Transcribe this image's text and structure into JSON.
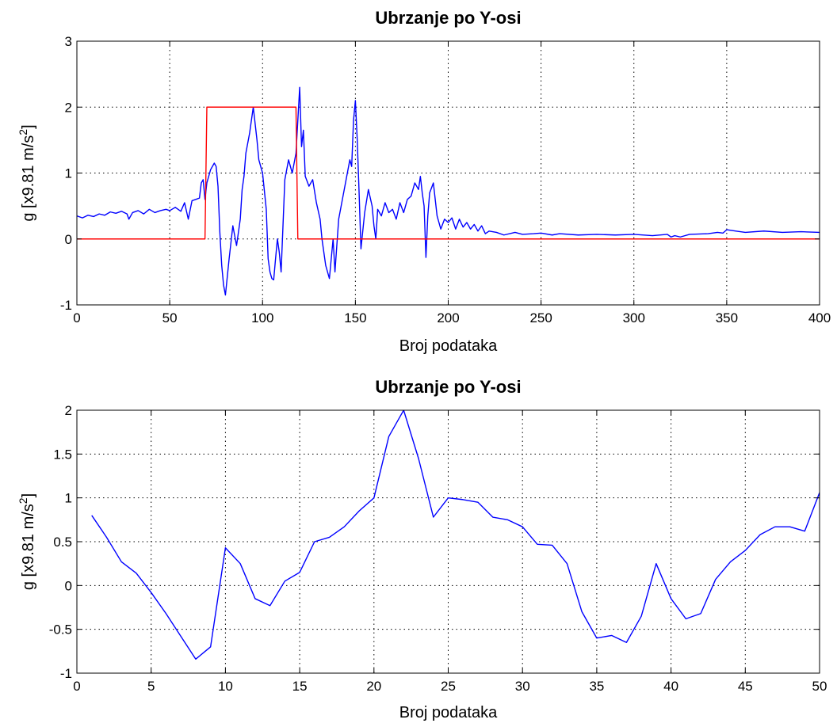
{
  "chart_data": [
    {
      "type": "line",
      "title": "Ubrzanje po Y-osi",
      "xlabel": "Broj podataka",
      "ylabel": "g [x9.81 m/s²]",
      "ylabel_main": "g [x9.81 m/s",
      "ylabel_sup": "2",
      "ylabel_tail": "]",
      "xlim": [
        0,
        400
      ],
      "ylim": [
        -1,
        3
      ],
      "xticks": [
        0,
        50,
        100,
        150,
        200,
        250,
        300,
        350,
        400
      ],
      "xtick_labels": [
        "0",
        "50",
        "100",
        "150",
        "200",
        "250",
        "300",
        "350",
        "400"
      ],
      "yticks": [
        -1,
        0,
        1,
        2,
        3
      ],
      "ytick_labels": [
        "-1",
        "0",
        "1",
        "2",
        "3"
      ],
      "grid": true,
      "series": [
        {
          "color": "#0000ff",
          "x": [
            0,
            3,
            6,
            9,
            12,
            15,
            18,
            21,
            24,
            27,
            28,
            30,
            33,
            36,
            39,
            42,
            45,
            48,
            50,
            53,
            56,
            58,
            60,
            62,
            64,
            66,
            67,
            68,
            69,
            70,
            72,
            74,
            75,
            76,
            77,
            78,
            79,
            80,
            82,
            84,
            86,
            88,
            89,
            90,
            91,
            93,
            95,
            97,
            98,
            100,
            102,
            103,
            104,
            105,
            106,
            107,
            108,
            109,
            110,
            112,
            114,
            116,
            118,
            119,
            120,
            121,
            122,
            123,
            125,
            127,
            129,
            131,
            132,
            133,
            134,
            136,
            137,
            138,
            139,
            141,
            143,
            145,
            147,
            148,
            149,
            150,
            151,
            152,
            153,
            155,
            157,
            159,
            160,
            161,
            162,
            164,
            166,
            168,
            170,
            172,
            174,
            176,
            178,
            180,
            182,
            184,
            185,
            186,
            187,
            188,
            189,
            190,
            192,
            194,
            196,
            198,
            200,
            202,
            204,
            206,
            208,
            210,
            212,
            214,
            216,
            218,
            220,
            222,
            226,
            230,
            236,
            240,
            246,
            250,
            256,
            260,
            270,
            280,
            290,
            300,
            310,
            318,
            320,
            322,
            325,
            330,
            340,
            345,
            348,
            350,
            355,
            360,
            370,
            380,
            390,
            400
          ],
          "y": [
            0.35,
            0.32,
            0.36,
            0.34,
            0.38,
            0.36,
            0.41,
            0.39,
            0.42,
            0.38,
            0.3,
            0.4,
            0.43,
            0.38,
            0.45,
            0.4,
            0.43,
            0.45,
            0.43,
            0.48,
            0.42,
            0.55,
            0.3,
            0.58,
            0.6,
            0.62,
            0.85,
            0.9,
            0.6,
            0.85,
            1.05,
            1.15,
            1.1,
            0.8,
            0.1,
            -0.4,
            -0.7,
            -0.85,
            -0.3,
            0.2,
            -0.1,
            0.3,
            0.75,
            0.95,
            1.3,
            1.6,
            2.0,
            1.5,
            1.2,
            1.0,
            0.45,
            -0.3,
            -0.5,
            -0.6,
            -0.62,
            -0.3,
            0.0,
            -0.2,
            -0.5,
            0.9,
            1.2,
            1.0,
            1.3,
            1.8,
            2.3,
            1.4,
            1.65,
            0.95,
            0.8,
            0.9,
            0.55,
            0.3,
            0.0,
            -0.2,
            -0.4,
            -0.6,
            -0.3,
            0.0,
            -0.5,
            0.3,
            0.6,
            0.9,
            1.2,
            1.1,
            1.8,
            2.1,
            1.5,
            0.7,
            -0.15,
            0.4,
            0.75,
            0.5,
            0.2,
            0.0,
            0.45,
            0.35,
            0.55,
            0.4,
            0.45,
            0.3,
            0.55,
            0.4,
            0.6,
            0.65,
            0.85,
            0.75,
            0.95,
            0.7,
            0.5,
            -0.28,
            0.35,
            0.7,
            0.85,
            0.35,
            0.15,
            0.3,
            0.25,
            0.32,
            0.15,
            0.3,
            0.18,
            0.25,
            0.15,
            0.22,
            0.12,
            0.2,
            0.08,
            0.12,
            0.1,
            0.06,
            0.1,
            0.07,
            0.08,
            0.09,
            0.06,
            0.08,
            0.06,
            0.07,
            0.06,
            0.07,
            0.05,
            0.07,
            0.03,
            0.05,
            0.03,
            0.07,
            0.08,
            0.1,
            0.09,
            0.14,
            0.12,
            0.1,
            0.12,
            0.1,
            0.11,
            0.1
          ]
        },
        {
          "color": "#ff0000",
          "x": [
            0,
            69,
            70,
            118,
            119,
            400
          ],
          "y": [
            0,
            0,
            2,
            2,
            0,
            0
          ]
        }
      ]
    },
    {
      "type": "line",
      "title": "Ubrzanje po Y-osi",
      "xlabel": "Broj podataka",
      "ylabel": "g [x9.81 m/s²]",
      "ylabel_main": "g [x9.81 m/s",
      "ylabel_sup": "2",
      "ylabel_tail": "]",
      "xlim": [
        0,
        50
      ],
      "ylim": [
        -1,
        2
      ],
      "xticks": [
        0,
        5,
        10,
        15,
        20,
        25,
        30,
        35,
        40,
        45,
        50
      ],
      "xtick_labels": [
        "0",
        "5",
        "10",
        "15",
        "20",
        "25",
        "30",
        "35",
        "40",
        "45",
        "50"
      ],
      "yticks": [
        -1,
        -0.5,
        0,
        0.5,
        1,
        1.5,
        2
      ],
      "ytick_labels": [
        "-1",
        "-0.5",
        "0",
        "0.5",
        "1",
        "1.5",
        "2"
      ],
      "grid": true,
      "series": [
        {
          "color": "#0000ff",
          "x": [
            1,
            2,
            3,
            4,
            5,
            6,
            7,
            8,
            9,
            10,
            11,
            12,
            13,
            14,
            15,
            16,
            17,
            18,
            19,
            20,
            21,
            22,
            23,
            24,
            25,
            26,
            27,
            28,
            29,
            30,
            31,
            32,
            33,
            34,
            35,
            36,
            37,
            38,
            39,
            40,
            41,
            42,
            43,
            44,
            45,
            46,
            47,
            48,
            49,
            50
          ],
          "y": [
            0.8,
            0.55,
            0.27,
            0.14,
            -0.08,
            -0.32,
            -0.58,
            -0.84,
            -0.7,
            0.43,
            0.25,
            -0.15,
            -0.23,
            0.05,
            0.15,
            0.5,
            0.55,
            0.67,
            0.85,
            1.0,
            1.7,
            2.0,
            1.45,
            0.78,
            1.0,
            0.98,
            0.95,
            0.78,
            0.75,
            0.67,
            0.47,
            0.46,
            0.25,
            -0.3,
            -0.6,
            -0.57,
            -0.65,
            -0.35,
            0.25,
            -0.15,
            -0.38,
            -0.32,
            0.07,
            0.27,
            0.4,
            0.58,
            0.67,
            0.67,
            0.62,
            1.06
          ]
        }
      ]
    }
  ]
}
